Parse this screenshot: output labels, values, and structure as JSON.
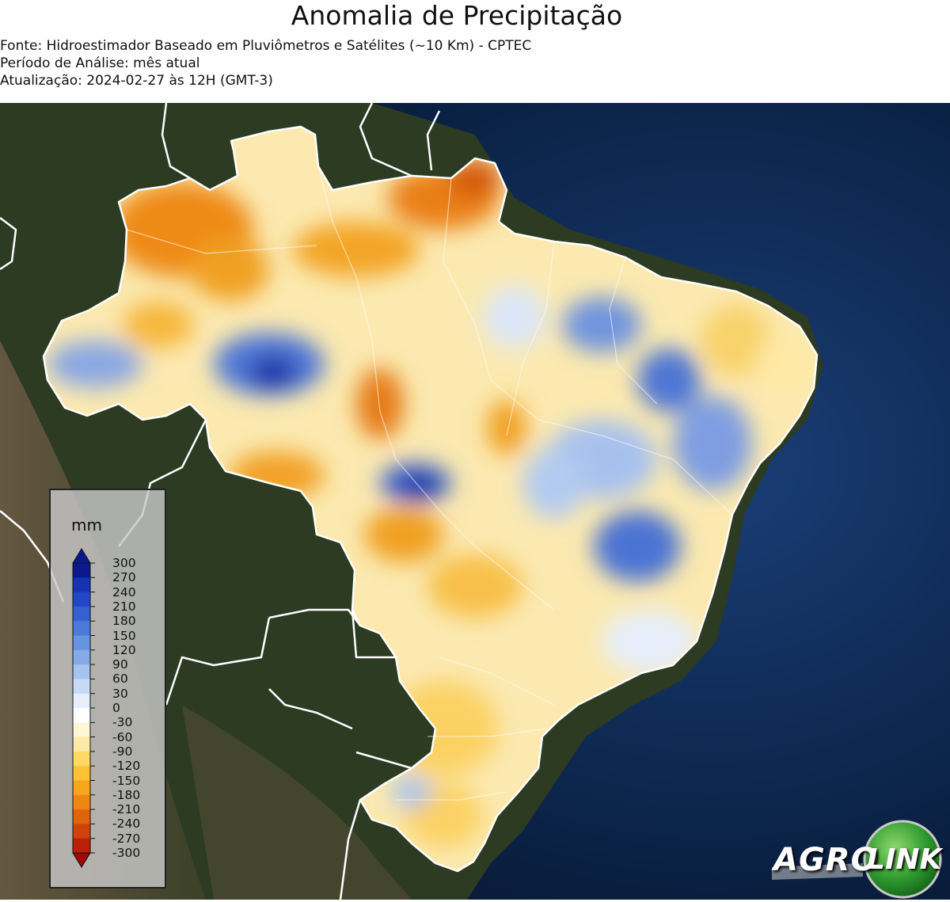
{
  "header": {
    "title": "Anomalia de Precipitação",
    "source_line": "Fonte: Hidroestimador Baseado em Pluviômetros e Satélites (~10 Km) - CPTEC",
    "period_line": "Período de Análise: mês atual",
    "update_line": "Atualização: 2024-02-27 às 12H (GMT-3)"
  },
  "legend": {
    "unit": "mm",
    "ticks": [
      "300",
      "270",
      "240",
      "210",
      "180",
      "150",
      "120",
      "90",
      "60",
      "30",
      "0",
      "-30",
      "-60",
      "-90",
      "-120",
      "-150",
      "-180",
      "-210",
      "-240",
      "-270",
      "-300"
    ],
    "colors": [
      "#0a1a8c",
      "#1533b0",
      "#2347c7",
      "#3561d0",
      "#4a7bd8",
      "#6694df",
      "#85aae6",
      "#a6c2ee",
      "#c8d9f5",
      "#e6eefb",
      "#ffffff",
      "#fff6d5",
      "#ffe9a6",
      "#ffd866",
      "#ffc233",
      "#f8a51e",
      "#ee8612",
      "#e0640d",
      "#cf420b",
      "#ba2008",
      "#a00806"
    ]
  },
  "logo": {
    "left_word": "AGRO",
    "right_word": "LINK",
    "colors": {
      "green": "#2f9a2f",
      "silver": "#c9c9c9"
    }
  },
  "map": {
    "colors": {
      "ocean": "#0d2a55",
      "land": "#2e3a22",
      "borders": "#ffffff",
      "dry": "#f0a020",
      "wet": "#2a55c8"
    }
  }
}
